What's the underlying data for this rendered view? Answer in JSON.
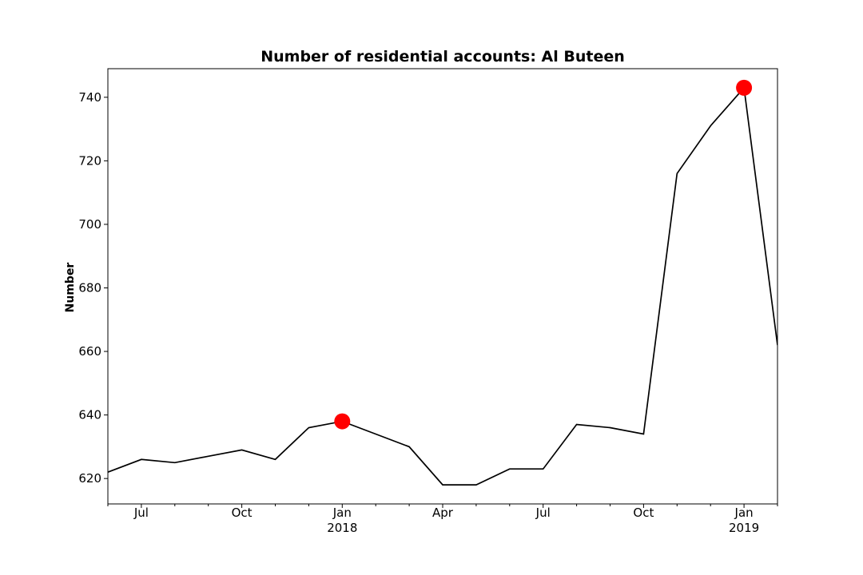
{
  "chart_data": {
    "type": "line",
    "title": "Number of residential accounts: Al Buteen",
    "xlabel": "",
    "ylabel": "Number",
    "x": [
      "2017-06",
      "2017-07",
      "2017-08",
      "2017-09",
      "2017-10",
      "2017-11",
      "2017-12",
      "2018-01",
      "2018-02",
      "2018-03",
      "2018-04",
      "2018-05",
      "2018-06",
      "2018-07",
      "2018-08",
      "2018-09",
      "2018-10",
      "2018-11",
      "2018-12",
      "2019-01",
      "2019-02"
    ],
    "series": [
      {
        "name": "Number",
        "color": "#000000",
        "values": [
          622,
          626,
          625,
          627,
          629,
          626,
          636,
          638,
          634,
          630,
          618,
          618,
          623,
          623,
          637,
          636,
          634,
          716,
          731,
          743,
          662
        ]
      }
    ],
    "highlights": [
      {
        "x": "2018-01",
        "value": 638,
        "color": "#ff0000"
      },
      {
        "x": "2019-01",
        "value": 743,
        "color": "#ff0000"
      }
    ],
    "ylim": [
      612,
      749
    ],
    "xlim_index": [
      0,
      20
    ],
    "y_ticks": [
      620,
      640,
      660,
      680,
      700,
      720,
      740
    ],
    "x_major_ticks": [
      {
        "index": 1,
        "label": "Jul",
        "sublabel": ""
      },
      {
        "index": 4,
        "label": "Oct",
        "sublabel": ""
      },
      {
        "index": 7,
        "label": "Jan",
        "sublabel": "2018"
      },
      {
        "index": 10,
        "label": "Apr",
        "sublabel": ""
      },
      {
        "index": 13,
        "label": "Jul",
        "sublabel": ""
      },
      {
        "index": 16,
        "label": "Oct",
        "sublabel": ""
      },
      {
        "index": 19,
        "label": "Jan",
        "sublabel": "2019"
      }
    ],
    "x_minor_ticks": [
      0,
      2,
      3,
      5,
      6,
      8,
      9,
      11,
      12,
      14,
      15,
      17,
      18,
      20
    ],
    "grid": false,
    "legend": "none"
  }
}
